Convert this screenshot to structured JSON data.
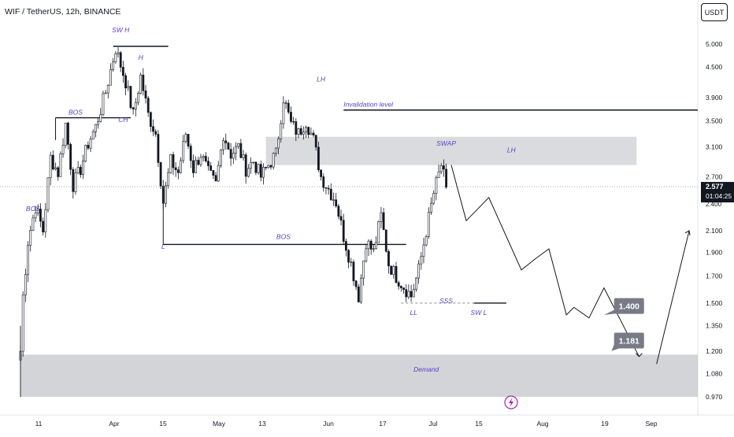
{
  "header": {
    "symbol_line": "WIF / TetherUS, 12h, BINANCE",
    "currency_button": "USDT"
  },
  "price_tag": {
    "price": "2.577",
    "countdown": "01:04:25",
    "partial_label": "2.400"
  },
  "chart_data": {
    "type": "candlestick",
    "title": "WIF / TetherUS, 12h, BINANCE",
    "y_scale": "log",
    "y_ticks": [
      5.0,
      4.5,
      3.9,
      3.5,
      3.1,
      2.7,
      2.1,
      1.9,
      1.7,
      1.5,
      1.35,
      1.2,
      1.08,
      0.97
    ],
    "y_tick_labels": [
      "5.000",
      "4.500",
      "3.900",
      "3.500",
      "3.100",
      "2.700",
      "2.100",
      "1.900",
      "1.700",
      "1.500",
      "1.350",
      "1.200",
      "1.080",
      "0.970"
    ],
    "x_tick_labels": [
      "11",
      "Apr",
      "15",
      "May",
      "13",
      "Jun",
      "17",
      "Jul",
      "15",
      "Aug",
      "19",
      "Sep"
    ],
    "last_price": 2.577,
    "anchors": [
      {
        "i": 0,
        "p": 1.2
      },
      {
        "i": 1,
        "p": 1.55
      },
      {
        "i": 3,
        "p": 2.0
      },
      {
        "i": 6,
        "p": 2.35
      },
      {
        "i": 9,
        "p": 2.1
      },
      {
        "i": 12,
        "p": 2.95
      },
      {
        "i": 15,
        "p": 2.75
      },
      {
        "i": 18,
        "p": 3.45
      },
      {
        "i": 21,
        "p": 2.6
      },
      {
        "i": 24,
        "p": 2.8
      },
      {
        "i": 27,
        "p": 3.15
      },
      {
        "i": 30,
        "p": 3.4
      },
      {
        "i": 34,
        "p": 4.0
      },
      {
        "i": 38,
        "p": 4.9
      },
      {
        "i": 42,
        "p": 4.2
      },
      {
        "i": 45,
        "p": 3.6
      },
      {
        "i": 48,
        "p": 4.3
      },
      {
        "i": 51,
        "p": 3.6
      },
      {
        "i": 54,
        "p": 3.3
      },
      {
        "i": 57,
        "p": 2.4
      },
      {
        "i": 60,
        "p": 2.9
      },
      {
        "i": 63,
        "p": 2.75
      },
      {
        "i": 66,
        "p": 3.3
      },
      {
        "i": 69,
        "p": 2.8
      },
      {
        "i": 72,
        "p": 3.0
      },
      {
        "i": 75,
        "p": 2.75
      },
      {
        "i": 78,
        "p": 2.6
      },
      {
        "i": 81,
        "p": 3.3
      },
      {
        "i": 84,
        "p": 3.0
      },
      {
        "i": 87,
        "p": 3.1
      },
      {
        "i": 90,
        "p": 2.8
      },
      {
        "i": 93,
        "p": 2.9
      },
      {
        "i": 96,
        "p": 2.7
      },
      {
        "i": 99,
        "p": 2.85
      },
      {
        "i": 102,
        "p": 3.0
      },
      {
        "i": 105,
        "p": 3.9
      },
      {
        "i": 108,
        "p": 3.45
      },
      {
        "i": 111,
        "p": 3.3
      },
      {
        "i": 114,
        "p": 3.5
      },
      {
        "i": 117,
        "p": 3.2
      },
      {
        "i": 120,
        "p": 2.7
      },
      {
        "i": 123,
        "p": 2.55
      },
      {
        "i": 126,
        "p": 2.4
      },
      {
        "i": 129,
        "p": 2.05
      },
      {
        "i": 132,
        "p": 1.8
      },
      {
        "i": 135,
        "p": 1.55
      },
      {
        "i": 138,
        "p": 2.0
      },
      {
        "i": 141,
        "p": 1.9
      },
      {
        "i": 144,
        "p": 2.25
      },
      {
        "i": 147,
        "p": 1.8
      },
      {
        "i": 150,
        "p": 1.7
      },
      {
        "i": 153,
        "p": 1.62
      },
      {
        "i": 156,
        "p": 1.55
      },
      {
        "i": 159,
        "p": 1.75
      },
      {
        "i": 162,
        "p": 2.1
      },
      {
        "i": 165,
        "p": 2.5
      },
      {
        "i": 168,
        "p": 2.85
      },
      {
        "i": 170,
        "p": 2.57
      }
    ],
    "projection_path": [
      {
        "i": 172,
        "p": 2.85
      },
      {
        "i": 178,
        "p": 2.2
      },
      {
        "i": 187,
        "p": 2.45
      },
      {
        "i": 200,
        "p": 1.75
      },
      {
        "i": 206,
        "p": 1.85
      },
      {
        "i": 211,
        "p": 1.93
      },
      {
        "i": 218,
        "p": 1.42
      },
      {
        "i": 221,
        "p": 1.47
      },
      {
        "i": 227,
        "p": 1.4
      },
      {
        "i": 233,
        "p": 1.61
      },
      {
        "i": 247,
        "p": 1.17
      }
    ],
    "recovery_arrow": [
      {
        "i": 254,
        "p": 1.13
      },
      {
        "i": 267,
        "p": 2.1
      }
    ],
    "zones": [
      {
        "name": "swap",
        "label": "SWAP",
        "top": 3.25,
        "bottom": 2.85,
        "from_i": 98,
        "to_i": 246
      },
      {
        "name": "demand",
        "label": "Demand",
        "top": 1.18,
        "bottom": 0.97,
        "from_i": 0,
        "to_i": 290
      }
    ],
    "levels": [
      {
        "name": "sw-h",
        "price": 4.95,
        "from_i": 37,
        "to_i": 59
      },
      {
        "name": "bos-upper",
        "price": 3.55,
        "from_i": 14,
        "to_i": 36
      },
      {
        "name": "ch",
        "price": 3.55,
        "from_i": 36,
        "to_i": 44
      },
      {
        "name": "invalidation",
        "label": "Invalidation level",
        "price": 3.68,
        "from_i": 129,
        "to_i": 290
      },
      {
        "name": "bos-lower",
        "price": 1.97,
        "from_i": 57,
        "to_i": 154
      },
      {
        "name": "sw-l",
        "price": 1.5,
        "from_i": 181,
        "to_i": 194
      },
      {
        "name": "sss",
        "price": 1.5,
        "from_i": 152,
        "to_i": 182,
        "dashed": true
      }
    ],
    "annotations": [
      {
        "text": "SW H",
        "i": 40,
        "p": 5.28
      },
      {
        "text": "H",
        "i": 48,
        "p": 4.65
      },
      {
        "text": "BOS",
        "i": 22,
        "p": 3.6
      },
      {
        "text": "CH",
        "i": 41,
        "p": 3.48
      },
      {
        "text": "BOS",
        "i": 5,
        "p": 2.3
      },
      {
        "text": "L",
        "i": 57,
        "p": 1.93
      },
      {
        "text": "BOS",
        "i": 105,
        "p": 2.02
      },
      {
        "text": "LH",
        "i": 120,
        "p": 4.2
      },
      {
        "text": "Invalidation level",
        "i": 129,
        "p": 3.74
      },
      {
        "text": "SWAP",
        "i": 170,
        "p": 3.12
      },
      {
        "text": "LH",
        "i": 196,
        "p": 3.02
      },
      {
        "text": "LL",
        "i": 157,
        "p": 1.42
      },
      {
        "text": "SSS",
        "i": 170,
        "p": 1.5
      },
      {
        "text": "SW L",
        "i": 183,
        "p": 1.42
      },
      {
        "text": "Demand",
        "i": 162,
        "p": 1.09
      }
    ],
    "callouts": [
      {
        "text": "1.400",
        "i": 243,
        "p": 1.48,
        "points_to_i": 233,
        "points_to_p": 1.42
      },
      {
        "text": "1.181",
        "i": 243,
        "p": 1.26,
        "points_to_i": 236,
        "points_to_p": 1.2
      }
    ],
    "colors": {
      "up_candle": "#131722",
      "down_candle": "#131722",
      "annotation_text": "#5b3fc4",
      "zone_fill": "#9598a1",
      "price_tag": "#131722",
      "callout_fill": "#787b86",
      "event_icon": "#9c27b0"
    }
  }
}
